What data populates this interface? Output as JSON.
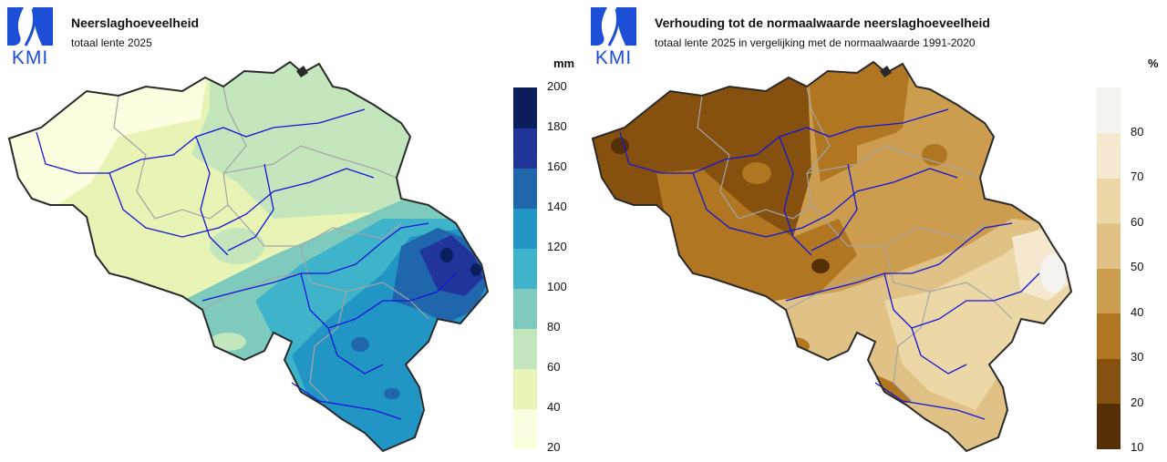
{
  "panels": [
    {
      "logo_text": "KMI",
      "title": "Neerslaghoeveelheid",
      "subtitle": "totaal lente 2025",
      "unit": "mm",
      "legend_ticks": [
        "20",
        "40",
        "60",
        "80",
        "100",
        "120",
        "140",
        "160",
        "180",
        "200"
      ],
      "legend_colors": [
        "#fdfde0",
        "#e8f4b5",
        "#c3e6bd",
        "#7ecbbd",
        "#3fb3c9",
        "#2195c4",
        "#1f66ad",
        "#21349a",
        "#0a1e5c"
      ]
    },
    {
      "logo_text": "KMI",
      "title": "Verhouding tot de normaalwaarde neerslaghoeveelheid",
      "subtitle": "totaal lente 2025 in vergelijking met de normaalwaarde 1991-2020",
      "unit": "%",
      "legend_ticks": [
        "10",
        "20",
        "30",
        "40",
        "50",
        "60",
        "70",
        "80"
      ],
      "legend_colors": [
        "#553006",
        "#86500e",
        "#b07622",
        "#cc9d4f",
        "#e1c286",
        "#ecd8a6",
        "#f4e9cf",
        "#f4f3f0"
      ]
    }
  ],
  "colors": {
    "logo_blue": "#1d4fd6",
    "border": "#2a2a2a",
    "river": "#1515d8",
    "province": "#a5a5a5"
  }
}
